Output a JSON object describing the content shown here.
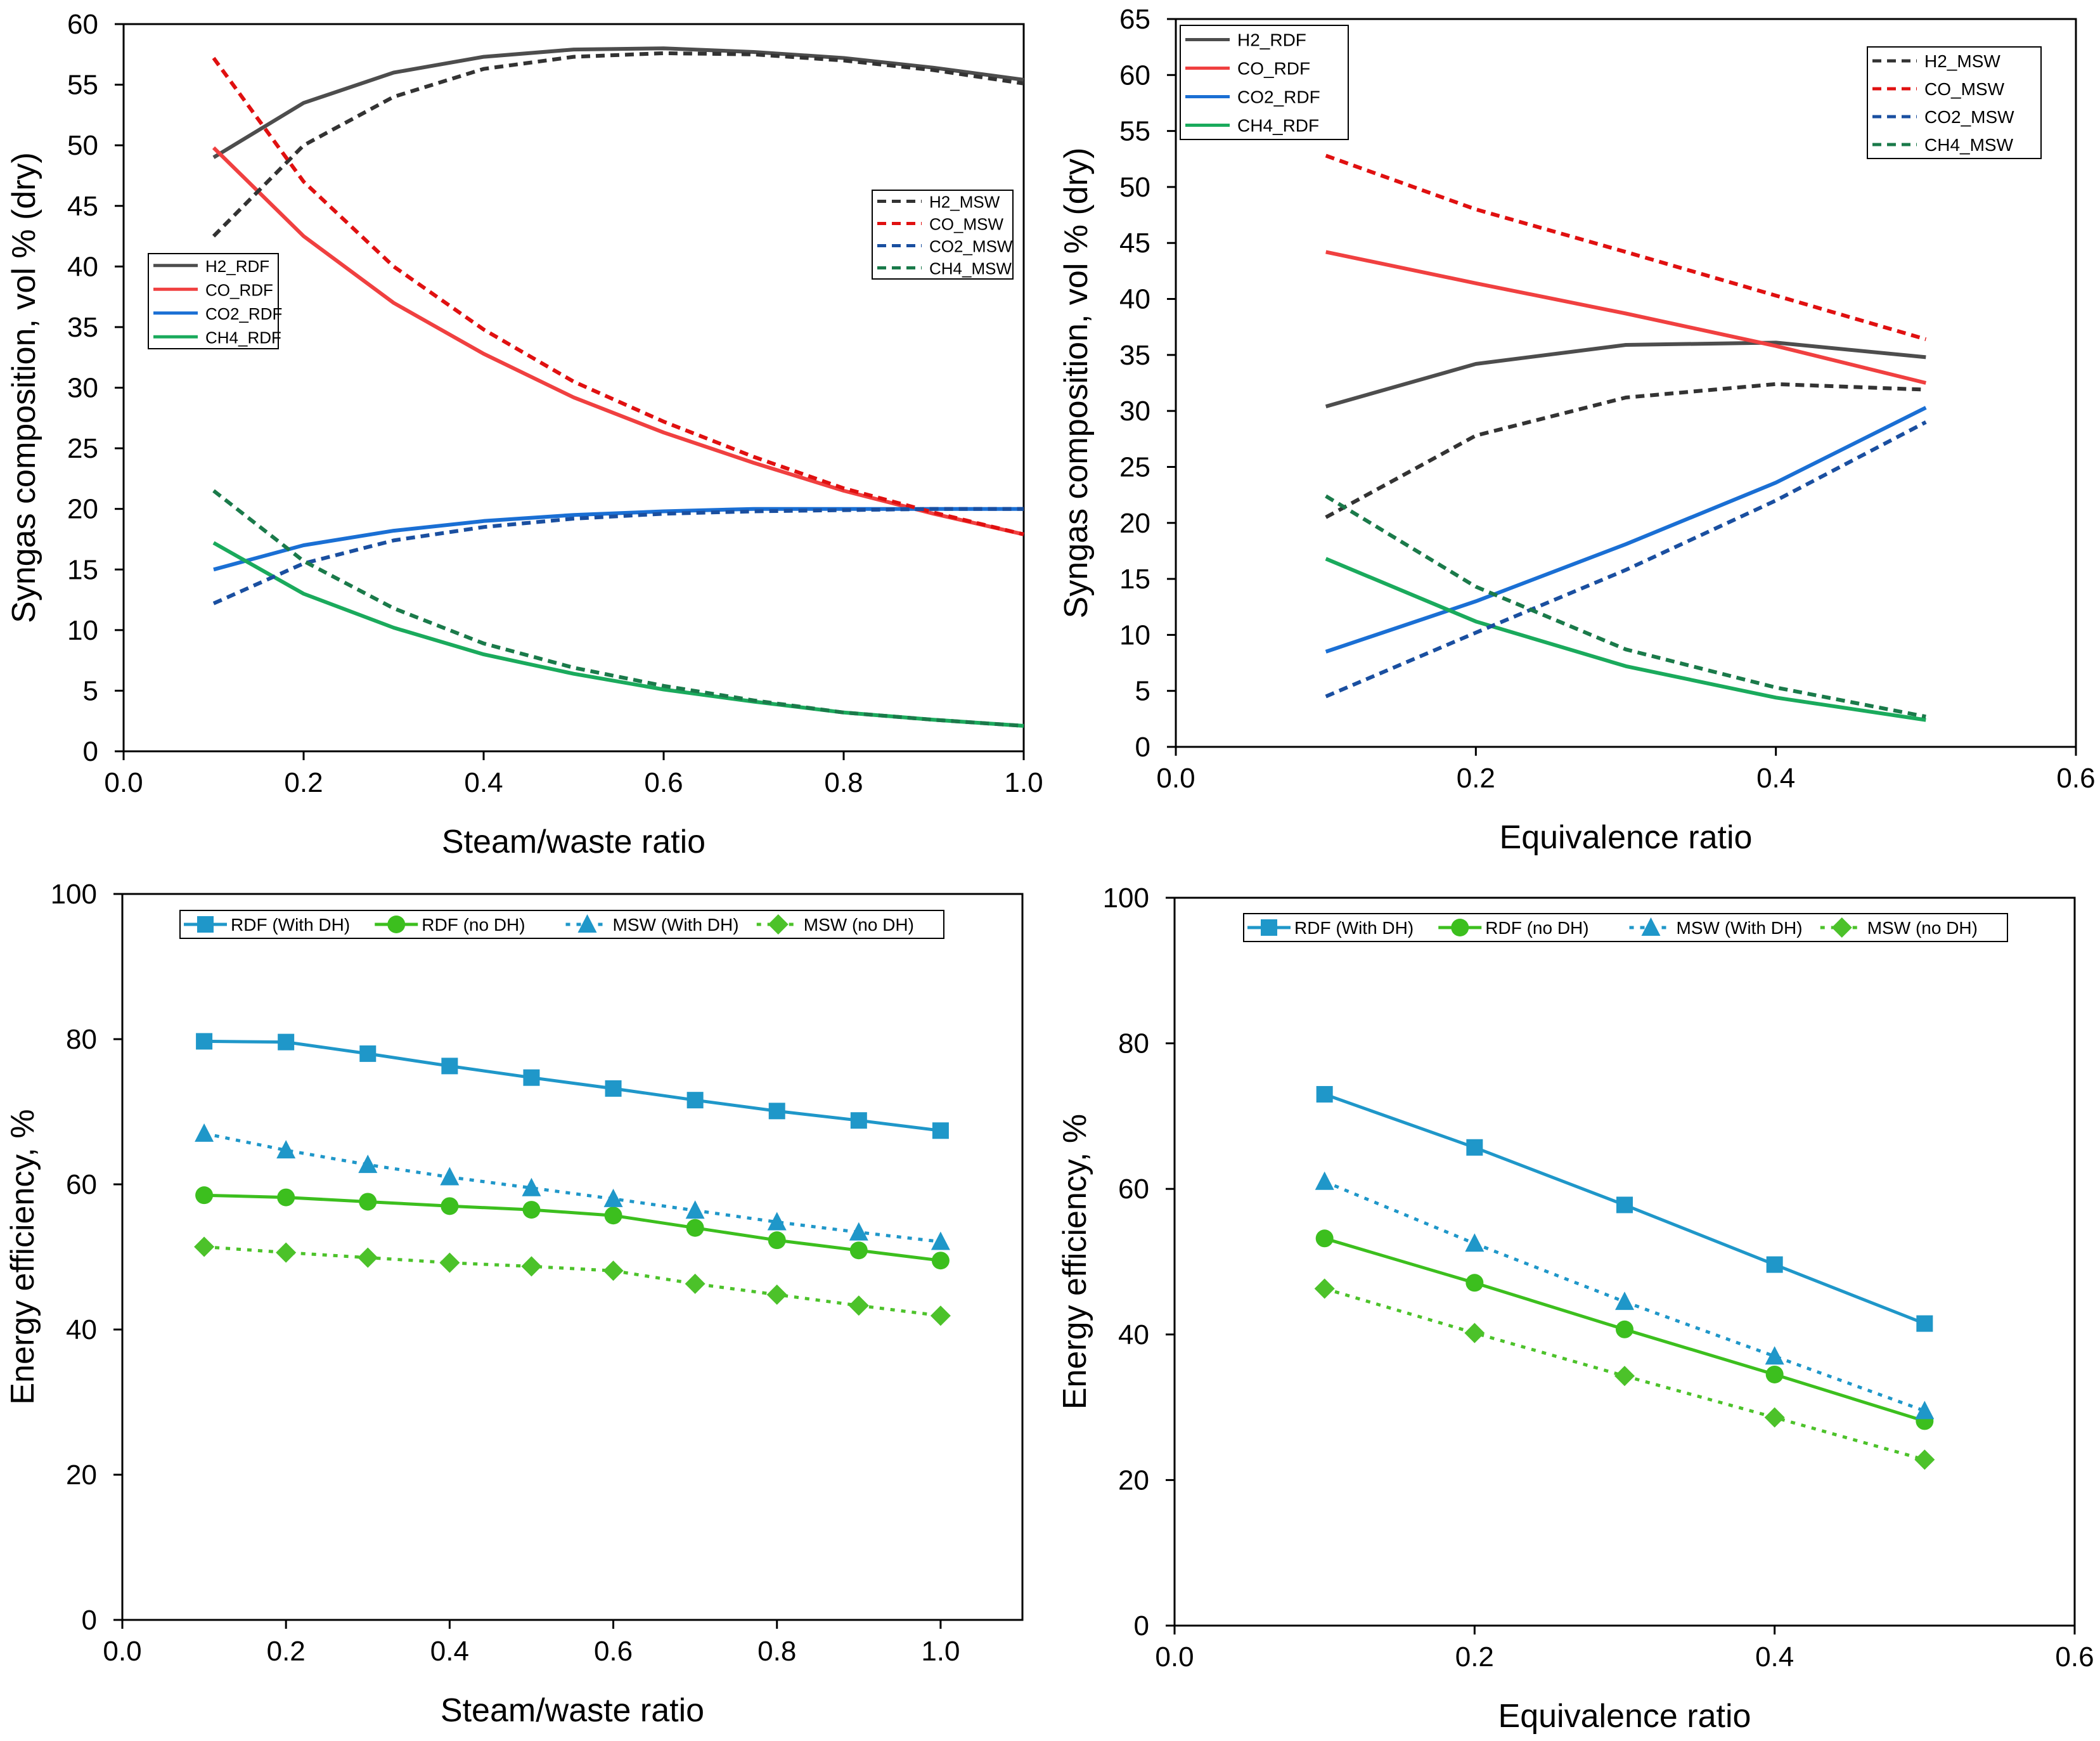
{
  "chart_data": [
    {
      "id": "a",
      "type": "line",
      "xlabel": "Steam/waste ratio",
      "ylabel": "Syngas composition, vol % (dry)",
      "xlim": [
        0.0,
        1.0
      ],
      "ylim": [
        0,
        60
      ],
      "xticks": [
        0.0,
        0.2,
        0.4,
        0.6,
        0.8,
        1.0
      ],
      "xtick_labels": [
        "0.0",
        "0.2",
        "0.4",
        "0.6",
        "0.8",
        "1.0"
      ],
      "yticks": [
        0,
        5,
        10,
        15,
        20,
        25,
        30,
        35,
        40,
        45,
        50,
        55,
        60
      ],
      "ytick_labels": [
        "0",
        "5",
        "10",
        "15",
        "20",
        "25",
        "30",
        "35",
        "40",
        "45",
        "50",
        "55",
        "60"
      ],
      "x": [
        0.1,
        0.2,
        0.3,
        0.4,
        0.5,
        0.6,
        0.7,
        0.8,
        0.9,
        1.0
      ],
      "legend_groups": [
        {
          "position": "middle-left",
          "series": [
            "H2_RDF",
            "CO_RDF",
            "CO2_RDF",
            "CH4_RDF"
          ]
        },
        {
          "position": "upper-right",
          "series": [
            "H2_MSW",
            "CO_MSW",
            "CO2_MSW",
            "CH4_MSW"
          ]
        }
      ],
      "series": [
        {
          "name": "H2_RDF",
          "color": "#4d4d4d",
          "dash": "solid",
          "values": [
            49.0,
            53.5,
            56.0,
            57.3,
            57.9,
            58.0,
            57.7,
            57.2,
            56.4,
            55.4
          ]
        },
        {
          "name": "CO_RDF",
          "color": "#f04040",
          "dash": "solid",
          "values": [
            49.8,
            42.5,
            37.0,
            32.8,
            29.2,
            26.3,
            23.8,
            21.5,
            19.6,
            17.9
          ]
        },
        {
          "name": "CO2_RDF",
          "color": "#1a6fd4",
          "dash": "solid",
          "values": [
            15.0,
            17.0,
            18.2,
            19.0,
            19.5,
            19.8,
            20.0,
            20.0,
            20.0,
            20.0
          ]
        },
        {
          "name": "CH4_RDF",
          "color": "#1aaa5c",
          "dash": "solid",
          "values": [
            17.2,
            13.0,
            10.2,
            8.0,
            6.4,
            5.1,
            4.1,
            3.2,
            2.6,
            2.1
          ]
        },
        {
          "name": "H2_MSW",
          "color": "#333333",
          "dash": "dashed",
          "values": [
            42.5,
            50.0,
            54.0,
            56.3,
            57.3,
            57.6,
            57.5,
            57.0,
            56.2,
            55.1
          ]
        },
        {
          "name": "CO_MSW",
          "color": "#e01010",
          "dash": "dashed",
          "values": [
            57.2,
            47.0,
            40.0,
            34.8,
            30.5,
            27.2,
            24.3,
            21.7,
            19.7,
            17.9
          ]
        },
        {
          "name": "CO2_MSW",
          "color": "#1a4fa0",
          "dash": "dashed",
          "values": [
            12.2,
            15.5,
            17.4,
            18.5,
            19.2,
            19.6,
            19.8,
            19.9,
            20.0,
            20.0
          ]
        },
        {
          "name": "CH4_MSW",
          "color": "#1a7a4a",
          "dash": "dashed",
          "values": [
            21.5,
            15.7,
            11.8,
            8.9,
            6.9,
            5.4,
            4.2,
            3.2,
            2.6,
            2.1
          ]
        }
      ]
    },
    {
      "id": "b",
      "type": "line",
      "xlabel": "Equivalence ratio",
      "ylabel": "Syngas composition, vol % (dry)",
      "xlim": [
        0.0,
        0.6
      ],
      "ylim": [
        0,
        65
      ],
      "xticks": [
        0.0,
        0.2,
        0.4,
        0.6
      ],
      "xtick_labels": [
        "0.0",
        "0.2",
        "0.4",
        "0.6"
      ],
      "yticks": [
        0,
        5,
        10,
        15,
        20,
        25,
        30,
        35,
        40,
        45,
        50,
        55,
        60,
        65
      ],
      "ytick_labels": [
        "0",
        "5",
        "10",
        "15",
        "20",
        "25",
        "30",
        "35",
        "40",
        "45",
        "50",
        "55",
        "60",
        "65"
      ],
      "x": [
        0.1,
        0.2,
        0.3,
        0.4,
        0.5
      ],
      "legend_groups": [
        {
          "position": "upper-left",
          "series": [
            "H2_RDF",
            "CO_RDF",
            "CO2_RDF",
            "CH4_RDF"
          ]
        },
        {
          "position": "upper-right",
          "series": [
            "H2_MSW",
            "CO_MSW",
            "CO2_MSW",
            "CH4_MSW"
          ]
        }
      ],
      "series": [
        {
          "name": "H2_RDF",
          "color": "#4d4d4d",
          "dash": "solid",
          "values": [
            30.4,
            34.2,
            35.9,
            36.1,
            34.8
          ]
        },
        {
          "name": "CO_RDF",
          "color": "#f04040",
          "dash": "solid",
          "values": [
            44.2,
            41.4,
            38.7,
            35.8,
            32.5
          ]
        },
        {
          "name": "CO2_RDF",
          "color": "#1a6fd4",
          "dash": "solid",
          "values": [
            8.5,
            13.0,
            18.1,
            23.6,
            30.3
          ]
        },
        {
          "name": "CH4_RDF",
          "color": "#1aaa5c",
          "dash": "solid",
          "values": [
            16.8,
            11.2,
            7.2,
            4.4,
            2.4
          ]
        },
        {
          "name": "H2_MSW",
          "color": "#333333",
          "dash": "dashed",
          "values": [
            20.5,
            27.8,
            31.2,
            32.4,
            31.9
          ]
        },
        {
          "name": "CO_MSW",
          "color": "#e01010",
          "dash": "dashed",
          "values": [
            52.8,
            48.0,
            44.2,
            40.3,
            36.4
          ]
        },
        {
          "name": "CO2_MSW",
          "color": "#1a4fa0",
          "dash": "dashed",
          "values": [
            4.5,
            10.2,
            15.8,
            22.0,
            29.0
          ]
        },
        {
          "name": "CH4_MSW",
          "color": "#1a7a4a",
          "dash": "dashed",
          "values": [
            22.4,
            14.3,
            8.7,
            5.3,
            2.7
          ]
        }
      ]
    },
    {
      "id": "c",
      "type": "line",
      "xlabel": "Steam/waste ratio",
      "ylabel": "Energy efficiency, %",
      "xlim": [
        0.0,
        1.1
      ],
      "ylim": [
        0,
        100
      ],
      "xticks": [
        0.0,
        0.2,
        0.4,
        0.6,
        0.8,
        1.0
      ],
      "xtick_labels": [
        "0.0",
        "0.2",
        "0.4",
        "0.6",
        "0.8",
        "1.0"
      ],
      "yticks": [
        0,
        20,
        40,
        60,
        80,
        100
      ],
      "ytick_labels": [
        "0",
        "20",
        "40",
        "60",
        "80",
        "100"
      ],
      "x": [
        0.1,
        0.2,
        0.3,
        0.4,
        0.5,
        0.6,
        0.7,
        0.8,
        0.9,
        1.0
      ],
      "legend_groups": [
        {
          "position": "top",
          "series": [
            "RDF (With DH)",
            "RDF (no DH)",
            "MSW (With DH)",
            "MSW (no DH)"
          ]
        }
      ],
      "series": [
        {
          "name": "RDF (With DH)",
          "color": "#1f97c9",
          "dash": "solid",
          "marker": "square",
          "values": [
            79.7,
            79.6,
            78.0,
            76.3,
            74.7,
            73.2,
            71.6,
            70.1,
            68.8,
            67.4
          ]
        },
        {
          "name": "RDF (no DH)",
          "color": "#3cbf1e",
          "dash": "solid",
          "marker": "circle",
          "values": [
            58.5,
            58.2,
            57.6,
            57.0,
            56.5,
            55.7,
            54.0,
            52.3,
            50.9,
            49.5
          ]
        },
        {
          "name": "MSW (With DH)",
          "color": "#1f97c9",
          "dash": "dotted",
          "marker": "triangle",
          "values": [
            67.0,
            64.7,
            62.7,
            61.0,
            59.5,
            58.0,
            56.4,
            54.8,
            53.4,
            52.1
          ]
        },
        {
          "name": "MSW (no DH)",
          "color": "#4cc22a",
          "dash": "dotted",
          "marker": "diamond",
          "values": [
            51.4,
            50.6,
            49.9,
            49.2,
            48.7,
            48.1,
            46.3,
            44.8,
            43.3,
            41.9
          ]
        }
      ]
    },
    {
      "id": "d",
      "type": "line",
      "xlabel": "Equivalence ratio",
      "ylabel": "Energy efficiency, %",
      "xlim": [
        0.0,
        0.6
      ],
      "ylim": [
        0,
        100
      ],
      "xticks": [
        0.0,
        0.2,
        0.4,
        0.6
      ],
      "xtick_labels": [
        "0.0",
        "0.2",
        "0.4",
        "0.6"
      ],
      "yticks": [
        0,
        20,
        40,
        60,
        80,
        100
      ],
      "ytick_labels": [
        "0",
        "20",
        "40",
        "60",
        "80",
        "100"
      ],
      "x": [
        0.1,
        0.2,
        0.3,
        0.4,
        0.5
      ],
      "legend_groups": [
        {
          "position": "top",
          "series": [
            "RDF (With DH)",
            "RDF (no DH)",
            "MSW (With DH)",
            "MSW (no DH)"
          ]
        }
      ],
      "series": [
        {
          "name": "RDF (With DH)",
          "color": "#1f97c9",
          "dash": "solid",
          "marker": "square",
          "values": [
            73.0,
            65.7,
            57.8,
            49.6,
            41.5
          ]
        },
        {
          "name": "RDF (no DH)",
          "color": "#3cbf1e",
          "dash": "solid",
          "marker": "circle",
          "values": [
            53.2,
            47.1,
            40.7,
            34.5,
            28.1
          ]
        },
        {
          "name": "MSW (With DH)",
          "color": "#1f97c9",
          "dash": "dotted",
          "marker": "triangle",
          "values": [
            61.0,
            52.5,
            44.5,
            37.0,
            29.5
          ]
        },
        {
          "name": "MSW (no DH)",
          "color": "#4cc22a",
          "dash": "dotted",
          "marker": "diamond",
          "values": [
            46.3,
            40.2,
            34.3,
            28.6,
            22.8
          ]
        }
      ]
    }
  ]
}
